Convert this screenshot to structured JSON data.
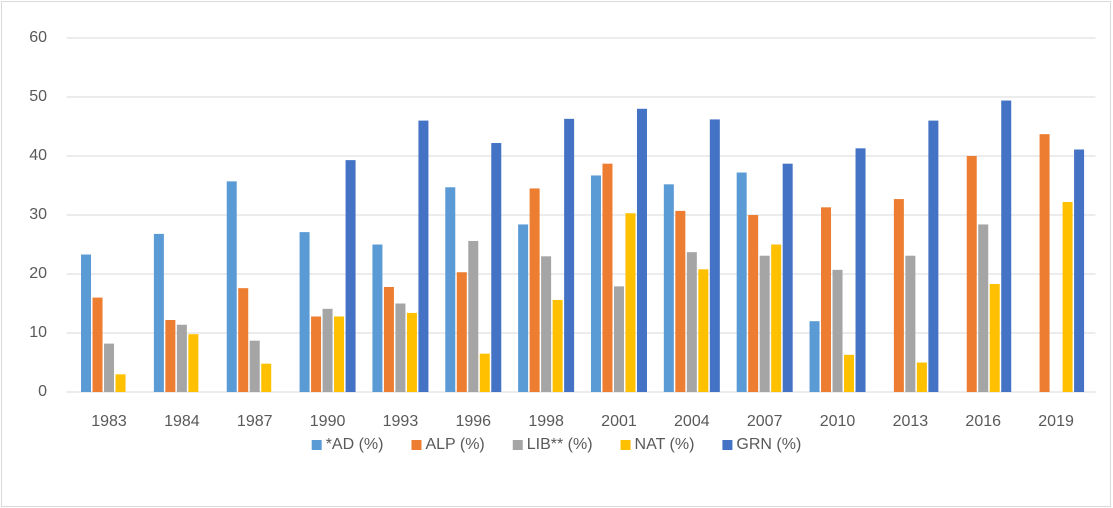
{
  "chart_data": {
    "type": "bar",
    "categories": [
      "1983",
      "1984",
      "1987",
      "1990",
      "1993",
      "1996",
      "1998",
      "2001",
      "2004",
      "2007",
      "2010",
      "2013",
      "2016",
      "2019"
    ],
    "series": [
      {
        "name": "*AD (%)",
        "color": "#5b9bd5",
        "values": [
          23.3,
          26.8,
          35.7,
          27.1,
          25,
          34.7,
          28.4,
          36.7,
          35.2,
          37.2,
          12,
          null,
          null,
          null
        ]
      },
      {
        "name": "ALP (%)",
        "color": "#ed7d31",
        "values": [
          16,
          12.2,
          17.6,
          12.8,
          17.8,
          20.3,
          34.5,
          38.7,
          30.7,
          30,
          31.3,
          32.7,
          40,
          43.7
        ]
      },
      {
        "name": "LIB** (%)",
        "color": "#a5a5a5",
        "values": [
          8.2,
          11.4,
          8.7,
          14.1,
          15,
          25.6,
          23,
          17.9,
          23.7,
          23.1,
          20.7,
          23.1,
          28.4,
          null
        ]
      },
      {
        "name": "NAT (%)",
        "color": "#ffc000",
        "values": [
          3,
          9.8,
          4.8,
          12.8,
          13.4,
          6.5,
          15.6,
          30.3,
          20.8,
          25,
          6.3,
          5,
          18.3,
          32.2
        ]
      },
      {
        "name": "GRN (%)",
        "color": "#4472c4",
        "values": [
          null,
          null,
          null,
          39.3,
          46,
          42.2,
          46.3,
          48,
          46.2,
          38.7,
          41.3,
          46,
          49.4,
          41.1
        ]
      }
    ],
    "ylim": [
      0,
      60
    ],
    "yticks": [
      0,
      10,
      20,
      30,
      40,
      50,
      60
    ],
    "grid": true,
    "legend": "bottom"
  }
}
